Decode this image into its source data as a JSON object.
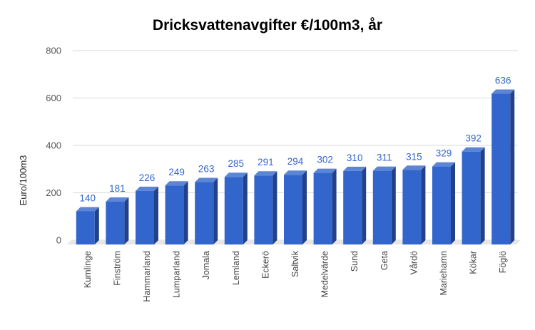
{
  "chart_data": {
    "type": "bar",
    "title": "Dricksvattenavgifter €/100m3, år",
    "xlabel": "",
    "ylabel": "Euro/100m3",
    "ylim": [
      0,
      800
    ],
    "yticks": [
      0,
      200,
      400,
      600,
      800
    ],
    "grid": true,
    "legend": "none",
    "categories": [
      "Kumlinge",
      "Finström",
      "Hammarland",
      "Lumparland",
      "Jomala",
      "Lemland",
      "Eckerö",
      "Saltvik",
      "Medelvärde",
      "Sund",
      "Geta",
      "Vårdö",
      "Mariehamn",
      "Kökar",
      "Föglö"
    ],
    "values": [
      140,
      181,
      226,
      249,
      263,
      285,
      291,
      294,
      302,
      310,
      311,
      315,
      329,
      392,
      636
    ],
    "data_labels": [
      "140",
      "181",
      "226",
      "249",
      "263",
      "285",
      "291",
      "294",
      "302",
      "310",
      "311",
      "315",
      "329",
      "392",
      "636"
    ]
  },
  "colors": {
    "bar_front": "#3366cc",
    "bar_side": "#21428a",
    "bar_top": "#5c85d6",
    "label": "#3366cc"
  }
}
